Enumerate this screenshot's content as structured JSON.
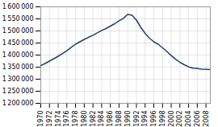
{
  "chart_data": {
    "type": "line",
    "x": [
      1970,
      1971,
      1972,
      1973,
      1974,
      1975,
      1976,
      1977,
      1978,
      1979,
      1980,
      1981,
      1982,
      1983,
      1984,
      1985,
      1986,
      1987,
      1988,
      1989,
      1990,
      1991,
      1992,
      1993,
      1994,
      1995,
      1996,
      1997,
      1998,
      1999,
      2000,
      2001,
      2002,
      2003,
      2004,
      2005,
      2006,
      2007,
      2008,
      2009
    ],
    "values": [
      1356079,
      1365000,
      1375000,
      1385000,
      1395000,
      1406000,
      1418000,
      1432000,
      1445000,
      1455000,
      1465000,
      1474000,
      1482000,
      1492000,
      1502000,
      1510000,
      1520000,
      1530000,
      1542000,
      1552000,
      1569000,
      1565000,
      1545000,
      1515000,
      1490000,
      1470000,
      1455000,
      1445000,
      1430000,
      1415000,
      1398000,
      1383000,
      1370000,
      1360000,
      1351000,
      1346000,
      1344000,
      1342000,
      1341000,
      1340000
    ],
    "color": "#1f3f6e",
    "xlim": [
      1970,
      2009
    ],
    "xticks": [
      1970,
      1972,
      1974,
      1976,
      1978,
      1980,
      1982,
      1984,
      1986,
      1988,
      1990,
      1992,
      1994,
      1996,
      1998,
      2000,
      2002,
      2004,
      2006,
      2008
    ],
    "ylim": [
      1200000,
      1600000
    ],
    "yticks": [
      {
        "value": 1200000,
        "label": "1 200 000"
      },
      {
        "value": 1250000,
        "label": "1 250 000"
      },
      {
        "value": 1300000,
        "label": "1 300 000"
      },
      {
        "value": 1350000,
        "label": "1 350 000"
      },
      {
        "value": 1400000,
        "label": "1 400 000"
      },
      {
        "value": 1450000,
        "label": "1 450 000"
      },
      {
        "value": 1500000,
        "label": "1 500 000"
      },
      {
        "value": 1550000,
        "label": "1 550 000"
      },
      {
        "value": 1600000,
        "label": "1 600 000"
      }
    ],
    "grid": true
  }
}
